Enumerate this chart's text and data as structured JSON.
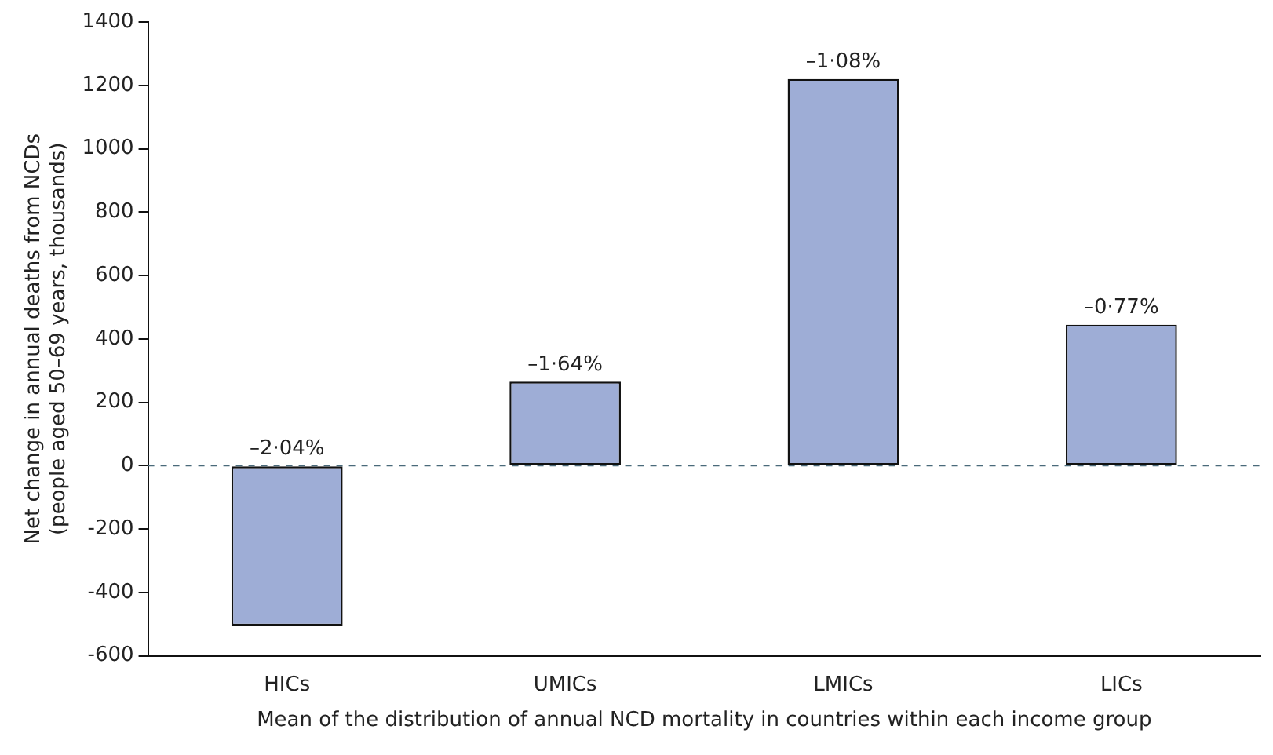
{
  "chart_data": {
    "type": "bar",
    "xlabel": "Mean of the distribution of annual NCD mortality in countries within each income group",
    "ylabel": "Net change in annual deaths from NCDs\n(people aged 50–69 years, thousands)",
    "categories": [
      "HICs",
      "UMICs",
      "LMICs",
      "LICs"
    ],
    "values": [
      -505,
      265,
      1220,
      445
    ],
    "annotations": [
      {
        "text": "–2·04%",
        "x": "HICs",
        "y": 0
      },
      {
        "text": "–1·64%",
        "x": "UMICs",
        "y": 265
      },
      {
        "text": "–1·08%",
        "x": "LMICs",
        "y": 1220
      },
      {
        "text": "–0·77%",
        "x": "LICs",
        "y": 445
      }
    ],
    "color": "#9eadd6",
    "ylim": [
      -600,
      1400
    ],
    "yticks": [
      -600,
      -400,
      -200,
      0,
      200,
      400,
      600,
      800,
      1000,
      1200,
      1400
    ],
    "ref_lines": [
      {
        "axis": "y",
        "value": 0,
        "color": "#4a6a7a",
        "line_style": "dashed"
      }
    ],
    "grid": false,
    "legend": false
  }
}
